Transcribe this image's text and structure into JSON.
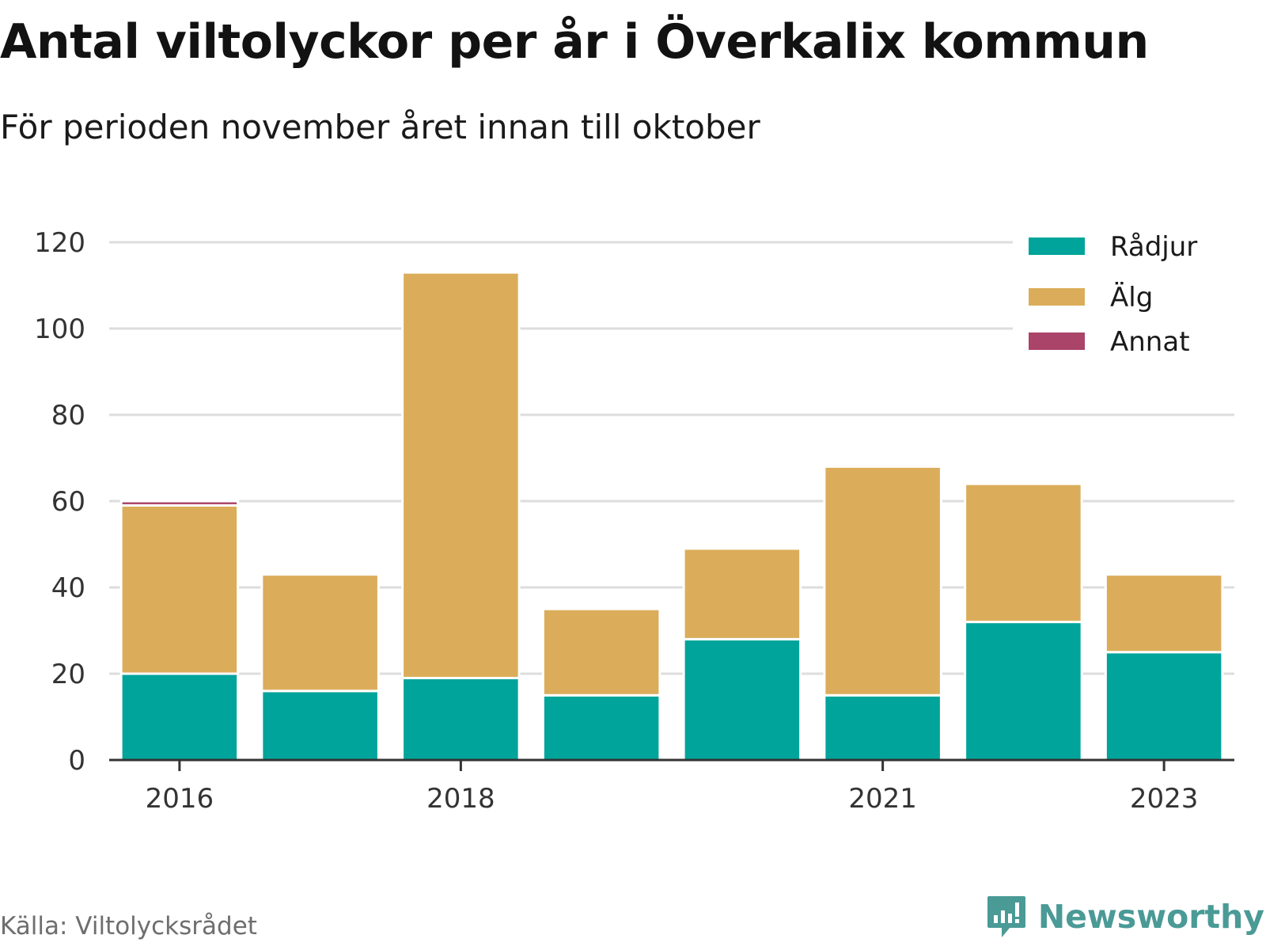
{
  "title": "Antal viltolyckor per år i Överkalix kommun",
  "subtitle": "För perioden november året innan till oktober",
  "source": "Källa: Viltolycksrådet",
  "logo_text": "Newsworthy",
  "colors": {
    "Rådjur": "#00a49a",
    "Älg": "#dbad5a",
    "Annat": "#aa4468",
    "grid": "#dddddd",
    "axis": "#333333"
  },
  "chart_data": {
    "type": "bar",
    "stacked": true,
    "categories": [
      "2016",
      "2017",
      "2018",
      "2019",
      "2020",
      "2021",
      "2022",
      "2023"
    ],
    "x_tick_labels": [
      "2016",
      "2018",
      "2021",
      "2023"
    ],
    "series": [
      {
        "name": "Rådjur",
        "values": [
          20,
          16,
          19,
          15,
          28,
          15,
          32,
          25
        ]
      },
      {
        "name": "Älg",
        "values": [
          39,
          27,
          94,
          20,
          21,
          53,
          32,
          18
        ]
      },
      {
        "name": "Annat",
        "values": [
          1,
          0,
          0,
          0,
          0,
          0,
          0,
          0
        ]
      }
    ],
    "ylim": [
      0,
      120
    ],
    "yticks": [
      0,
      20,
      40,
      60,
      80,
      100,
      120
    ],
    "grid": true,
    "legend_position": "top-right"
  }
}
